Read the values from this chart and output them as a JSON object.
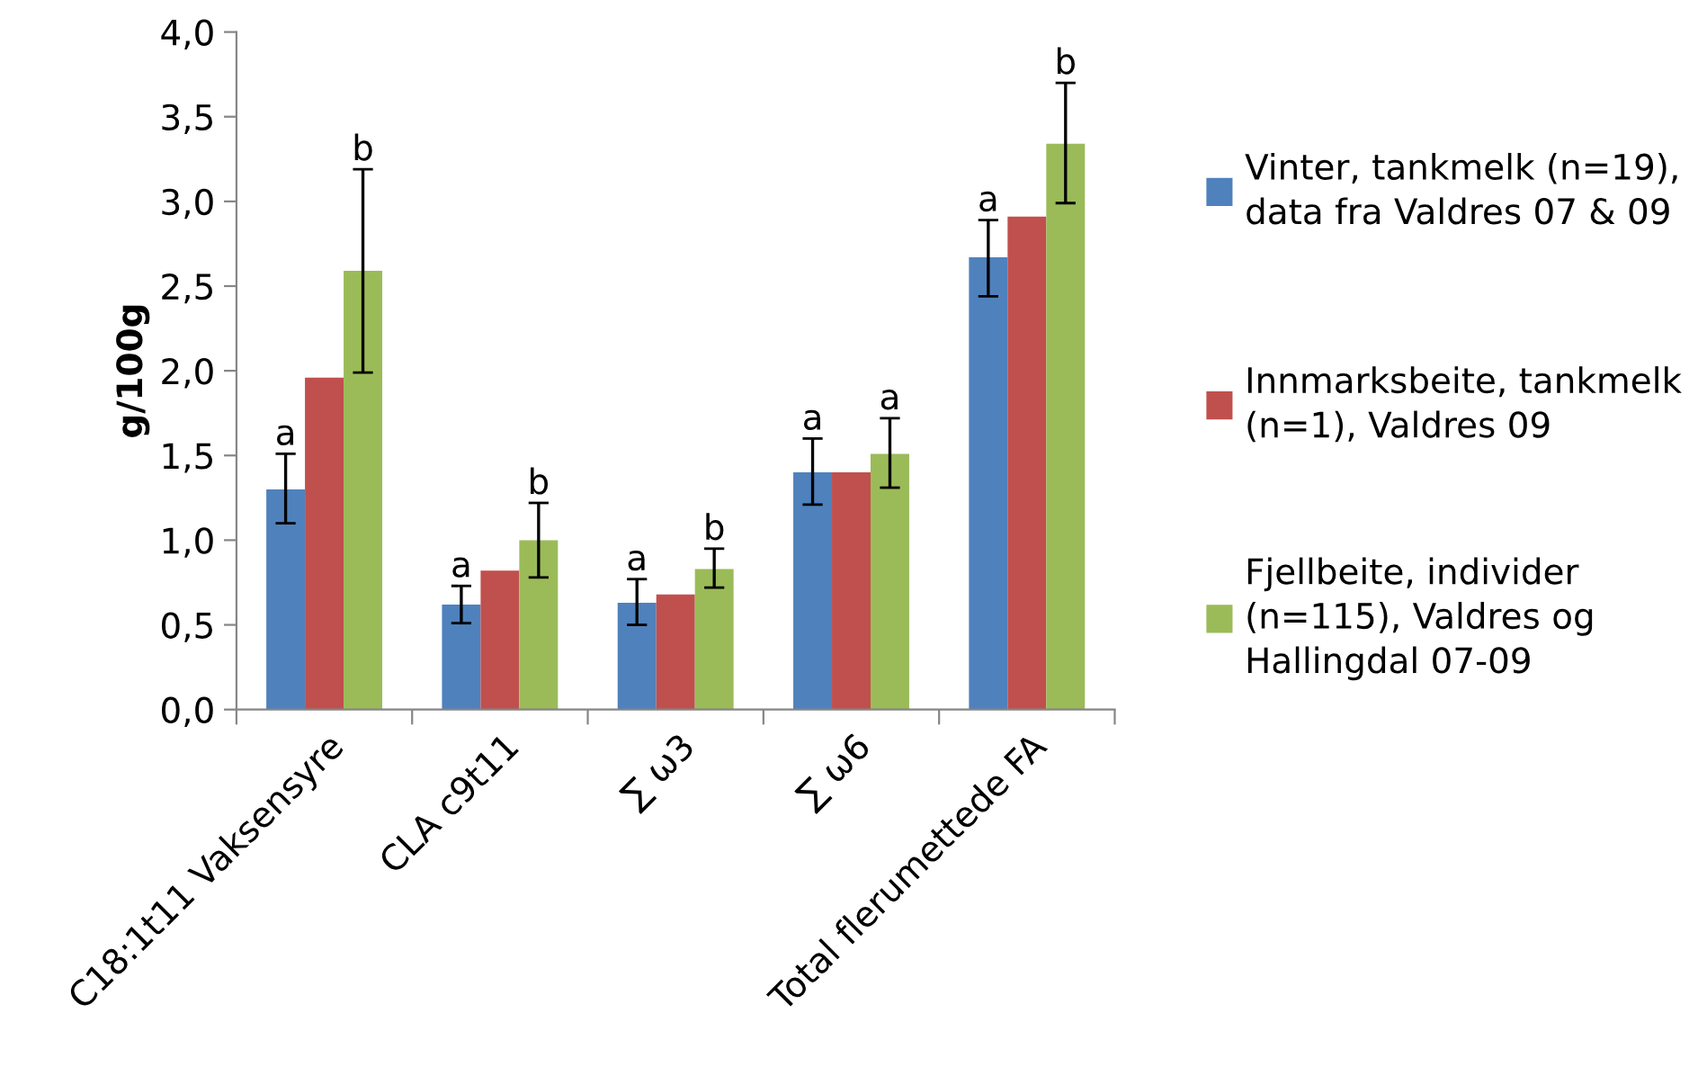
{
  "chart_data": {
    "type": "bar",
    "ylabel": "g/100g",
    "categories": [
      "C18:1t11 Vaksensyre",
      "CLA c9t11",
      "∑ ω3",
      "∑ ω6",
      "Total flerumettede FA"
    ],
    "series": [
      {
        "name": "Vinter, tankmelk (n=19), data fra Valdres 07 & 09",
        "color": "#4f81bd",
        "values": [
          1.3,
          0.62,
          0.63,
          1.4,
          2.67
        ],
        "errors": [
          [
            1.1,
            1.51
          ],
          [
            0.51,
            0.73
          ],
          [
            0.5,
            0.77
          ],
          [
            1.21,
            1.6
          ],
          [
            2.44,
            2.89
          ]
        ],
        "value_labels": [
          "a",
          "a",
          "a",
          "a",
          "a"
        ]
      },
      {
        "name": "Innmarksbeite, tankmelk (n=1), Valdres 09",
        "color": "#c0504d",
        "values": [
          1.96,
          0.82,
          0.68,
          1.4,
          2.91
        ]
      },
      {
        "name": "Fjellbeite, individer (n=115), Valdres og Hallingdal 07-09",
        "color": "#9bbb59",
        "values": [
          2.59,
          1.0,
          0.83,
          1.51,
          3.34
        ],
        "errors": [
          [
            1.99,
            3.19
          ],
          [
            0.78,
            1.22
          ],
          [
            0.72,
            0.95
          ],
          [
            1.31,
            1.72
          ],
          [
            2.99,
            3.7
          ]
        ],
        "value_labels": [
          "b",
          "b",
          "b",
          "a",
          "b"
        ]
      }
    ],
    "ylim": [
      0,
      4
    ],
    "yticks": [
      {
        "value": 0,
        "label": "0,0"
      },
      {
        "value": 0.5,
        "label": "0,5"
      },
      {
        "value": 1,
        "label": "1,0"
      },
      {
        "value": 1.5,
        "label": "1,5"
      },
      {
        "value": 2,
        "label": "2,0"
      },
      {
        "value": 2.5,
        "label": "2,5"
      },
      {
        "value": 3,
        "label": "3,0"
      },
      {
        "value": 3.5,
        "label": "3,5"
      },
      {
        "value": 4,
        "label": "4,0"
      }
    ],
    "grid": false,
    "legend": "right"
  }
}
